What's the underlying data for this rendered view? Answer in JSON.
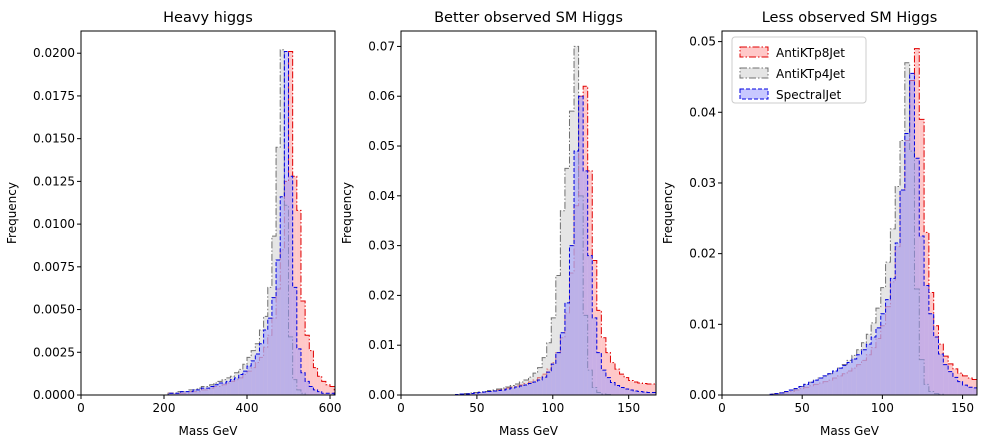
{
  "chart_data": [
    {
      "type": "histogram",
      "title": "Heavy higgs",
      "xlabel": "Mass GeV",
      "ylabel": "Frequency",
      "xlim": [
        0,
        612
      ],
      "ylim": [
        0,
        0.0213
      ],
      "xticks": [
        0,
        200,
        400,
        600
      ],
      "yticks": [
        0.0,
        0.0025,
        0.005,
        0.0075,
        0.01,
        0.0125,
        0.015,
        0.0175,
        0.02
      ],
      "ytick_decimals": 4,
      "bin_width": 10,
      "series": [
        {
          "name": "AntiKTp8Jet",
          "edge": "#e00000",
          "fill": "#ff9a9a",
          "dash": "7,2,1.5,2",
          "x_start": 0,
          "values": [
            0,
            0,
            0,
            0,
            0,
            0,
            0,
            0,
            0,
            0,
            0,
            0,
            0,
            0,
            0,
            0,
            0,
            0,
            0,
            0,
            0,
            0.0001,
            0.0001,
            0.0001,
            0.0001,
            0.0001,
            0.0002,
            0.0002,
            0.0002,
            0.0003,
            0.0003,
            0.0004,
            0.0005,
            0.0005,
            0.0006,
            0.0007,
            0.0008,
            0.0009,
            0.001,
            0.0012,
            0.0014,
            0.0016,
            0.0019,
            0.0022,
            0.0028,
            0.0035,
            0.0045,
            0.0062,
            0.0085,
            0.0125,
            0.0201,
            0.0128,
            0.0108,
            0.0055,
            0.0035,
            0.0026,
            0.0016,
            0.0011,
            0.0008,
            0.0006,
            0.0005
          ]
        },
        {
          "name": "AntiKTp4Jet",
          "edge": "#707070",
          "fill": "#d0d0d0",
          "dash": "7,2,1.5,2",
          "x_start": 0,
          "values": [
            0,
            0,
            0,
            0,
            0,
            0,
            0,
            0,
            0,
            0,
            0,
            0,
            0,
            0,
            0,
            0,
            0,
            0,
            0,
            0,
            0,
            0.0001,
            0.0001,
            0.0002,
            0.0002,
            0.0002,
            0.0003,
            0.0003,
            0.0004,
            0.0005,
            0.0005,
            0.0006,
            0.0007,
            0.0008,
            0.0009,
            0.001,
            0.0011,
            0.0013,
            0.0015,
            0.0018,
            0.0022,
            0.0026,
            0.003,
            0.0038,
            0.0046,
            0.0063,
            0.0093,
            0.0145,
            0.0202,
            0.0111,
            0.0034,
            0.0009,
            0.0003,
            0.0001,
            0,
            0,
            0,
            0,
            0,
            0,
            0
          ]
        },
        {
          "name": "SpectralJet",
          "edge": "#0000e0",
          "fill": "#9a9aff",
          "dash": "4,2",
          "x_start": 0,
          "values": [
            0,
            0,
            0,
            0,
            0,
            0,
            0,
            0,
            0,
            0,
            0,
            0,
            0,
            0,
            0,
            0,
            0,
            0,
            0,
            0,
            0,
            0.0001,
            0.0001,
            0.0001,
            0.0002,
            0.0002,
            0.0002,
            0.0003,
            0.0003,
            0.0004,
            0.0004,
            0.0005,
            0.0006,
            0.0007,
            0.0007,
            0.0008,
            0.0009,
            0.001,
            0.0012,
            0.0014,
            0.0017,
            0.002,
            0.0024,
            0.003,
            0.0038,
            0.0045,
            0.0057,
            0.0079,
            0.0116,
            0.0201,
            0.0128,
            0.0063,
            0.0027,
            0.0013,
            0.0008,
            0.0005,
            0.0003,
            0.0002,
            0.0001,
            0.0001,
            0.0001
          ]
        }
      ]
    },
    {
      "type": "histogram",
      "title": "Better observed SM Higgs",
      "xlabel": "Mass GeV",
      "ylabel": "Frequency",
      "xlim": [
        0,
        168
      ],
      "ylim": [
        0,
        0.0731
      ],
      "xticks": [
        0,
        50,
        100,
        150
      ],
      "yticks": [
        0.0,
        0.01,
        0.02,
        0.03,
        0.04,
        0.05,
        0.06,
        0.07
      ],
      "ytick_decimals": 2,
      "bin_width": 3,
      "series": [
        {
          "name": "AntiKTp8Jet",
          "edge": "#e00000",
          "fill": "#ff9a9a",
          "dash": "7,2,1.5,2",
          "x_start": 0,
          "values": [
            0,
            0,
            0,
            0,
            0,
            0,
            0,
            0,
            0,
            0,
            0,
            0,
            0.0001,
            0.0002,
            0.0003,
            0.0004,
            0.0005,
            0.0006,
            0.0007,
            0.0008,
            0.0009,
            0.001,
            0.0012,
            0.0014,
            0.0016,
            0.0018,
            0.002,
            0.0023,
            0.0026,
            0.003,
            0.0035,
            0.0042,
            0.0052,
            0.0065,
            0.0085,
            0.0115,
            0.0165,
            0.0245,
            0.038,
            0.06,
            0.062,
            0.045,
            0.027,
            0.017,
            0.0115,
            0.0085,
            0.0065,
            0.0052,
            0.0042,
            0.0035,
            0.0029,
            0.0026,
            0.0024,
            0.0023,
            0.0022,
            0.0022
          ]
        },
        {
          "name": "AntiKTp4Jet",
          "edge": "#707070",
          "fill": "#d0d0d0",
          "dash": "7,2,1.5,2",
          "x_start": 0,
          "values": [
            0,
            0,
            0,
            0,
            0,
            0,
            0,
            0,
            0,
            0,
            0,
            0,
            0.0001,
            0.0002,
            0.0003,
            0.0004,
            0.0005,
            0.0006,
            0.0007,
            0.0009,
            0.001,
            0.0012,
            0.0014,
            0.0016,
            0.0019,
            0.0022,
            0.0026,
            0.003,
            0.0036,
            0.0044,
            0.0055,
            0.0075,
            0.0105,
            0.0155,
            0.024,
            0.037,
            0.0455,
            0.057,
            0.07,
            0.04,
            0.016,
            0.005,
            0.0015,
            0.0005,
            0.0002,
            0.0001,
            0,
            0,
            0,
            0,
            0,
            0,
            0,
            0,
            0,
            0
          ]
        },
        {
          "name": "SpectralJet",
          "edge": "#0000e0",
          "fill": "#9a9aff",
          "dash": "4,2",
          "x_start": 0,
          "values": [
            0,
            0,
            0,
            0,
            0,
            0,
            0,
            0,
            0,
            0,
            0,
            0,
            0.0001,
            0.0002,
            0.0002,
            0.0003,
            0.0004,
            0.0005,
            0.0006,
            0.0007,
            0.0008,
            0.0009,
            0.001,
            0.0012,
            0.0014,
            0.0016,
            0.0018,
            0.002,
            0.0023,
            0.0026,
            0.003,
            0.0036,
            0.0046,
            0.0062,
            0.0085,
            0.0125,
            0.0185,
            0.03,
            0.049,
            0.06,
            0.045,
            0.028,
            0.0155,
            0.0085,
            0.005,
            0.0035,
            0.0025,
            0.0019,
            0.0015,
            0.0012,
            0.001,
            0.0008,
            0.0007,
            0.0006,
            0.0005,
            0.0005
          ]
        }
      ]
    },
    {
      "type": "histogram",
      "title": "Less observed SM Higgs",
      "xlabel": "Mass GeV",
      "ylabel": "Frequency",
      "xlim": [
        0,
        159
      ],
      "ylim": [
        0,
        0.0515
      ],
      "xticks": [
        0,
        50,
        100,
        150
      ],
      "yticks": [
        0.0,
        0.01,
        0.02,
        0.03,
        0.04,
        0.05
      ],
      "ytick_decimals": 2,
      "bin_width": 3,
      "legend": {
        "position": "upper-left"
      },
      "series": [
        {
          "name": "AntiKTp8Jet",
          "edge": "#e00000",
          "fill": "#ff9a9a",
          "dash": "7,2,1.5,2",
          "x_start": 0,
          "values": [
            0,
            0,
            0,
            0,
            0,
            0,
            0,
            0,
            0,
            0,
            0.0001,
            0.0002,
            0.0003,
            0.0004,
            0.0005,
            0.0007,
            0.0009,
            0.0011,
            0.0013,
            0.0015,
            0.0017,
            0.0019,
            0.0021,
            0.0024,
            0.0027,
            0.003,
            0.0034,
            0.0038,
            0.0043,
            0.0049,
            0.0057,
            0.0067,
            0.008,
            0.0098,
            0.0125,
            0.016,
            0.021,
            0.029,
            0.036,
            0.0445,
            0.049,
            0.039,
            0.023,
            0.0145,
            0.0098,
            0.0072,
            0.0055,
            0.0044,
            0.0037,
            0.0031,
            0.0027,
            0.0024,
            0.0022
          ]
        },
        {
          "name": "AntiKTp4Jet",
          "edge": "#707070",
          "fill": "#d0d0d0",
          "dash": "7,2,1.5,2",
          "x_start": 0,
          "values": [
            0,
            0,
            0,
            0,
            0,
            0,
            0,
            0,
            0,
            0,
            0.0001,
            0.0002,
            0.0003,
            0.0005,
            0.0007,
            0.0009,
            0.0012,
            0.0015,
            0.0018,
            0.0021,
            0.0024,
            0.0027,
            0.003,
            0.0034,
            0.0038,
            0.0043,
            0.0049,
            0.0056,
            0.0064,
            0.0074,
            0.0086,
            0.0102,
            0.0123,
            0.0152,
            0.0188,
            0.0235,
            0.0295,
            0.036,
            0.047,
            0.0345,
            0.015,
            0.005,
            0.0015,
            0.0005,
            0.0002,
            0.0001,
            0,
            0,
            0,
            0,
            0,
            0,
            0
          ]
        },
        {
          "name": "SpectralJet",
          "edge": "#0000e0",
          "fill": "#9a9aff",
          "dash": "4,2",
          "x_start": 0,
          "values": [
            0,
            0,
            0,
            0,
            0,
            0,
            0,
            0,
            0,
            0,
            0.0001,
            0.0002,
            0.0003,
            0.0005,
            0.0007,
            0.0009,
            0.0012,
            0.0015,
            0.0018,
            0.0021,
            0.0024,
            0.0027,
            0.003,
            0.0034,
            0.0038,
            0.0042,
            0.0046,
            0.0051,
            0.0057,
            0.0064,
            0.0072,
            0.0082,
            0.0095,
            0.0115,
            0.0135,
            0.0165,
            0.0215,
            0.029,
            0.037,
            0.0455,
            0.0335,
            0.0225,
            0.0155,
            0.0115,
            0.0082,
            0.0058,
            0.0043,
            0.0033,
            0.0025,
            0.0019,
            0.0014,
            0.0011,
            0.001
          ]
        }
      ]
    }
  ]
}
